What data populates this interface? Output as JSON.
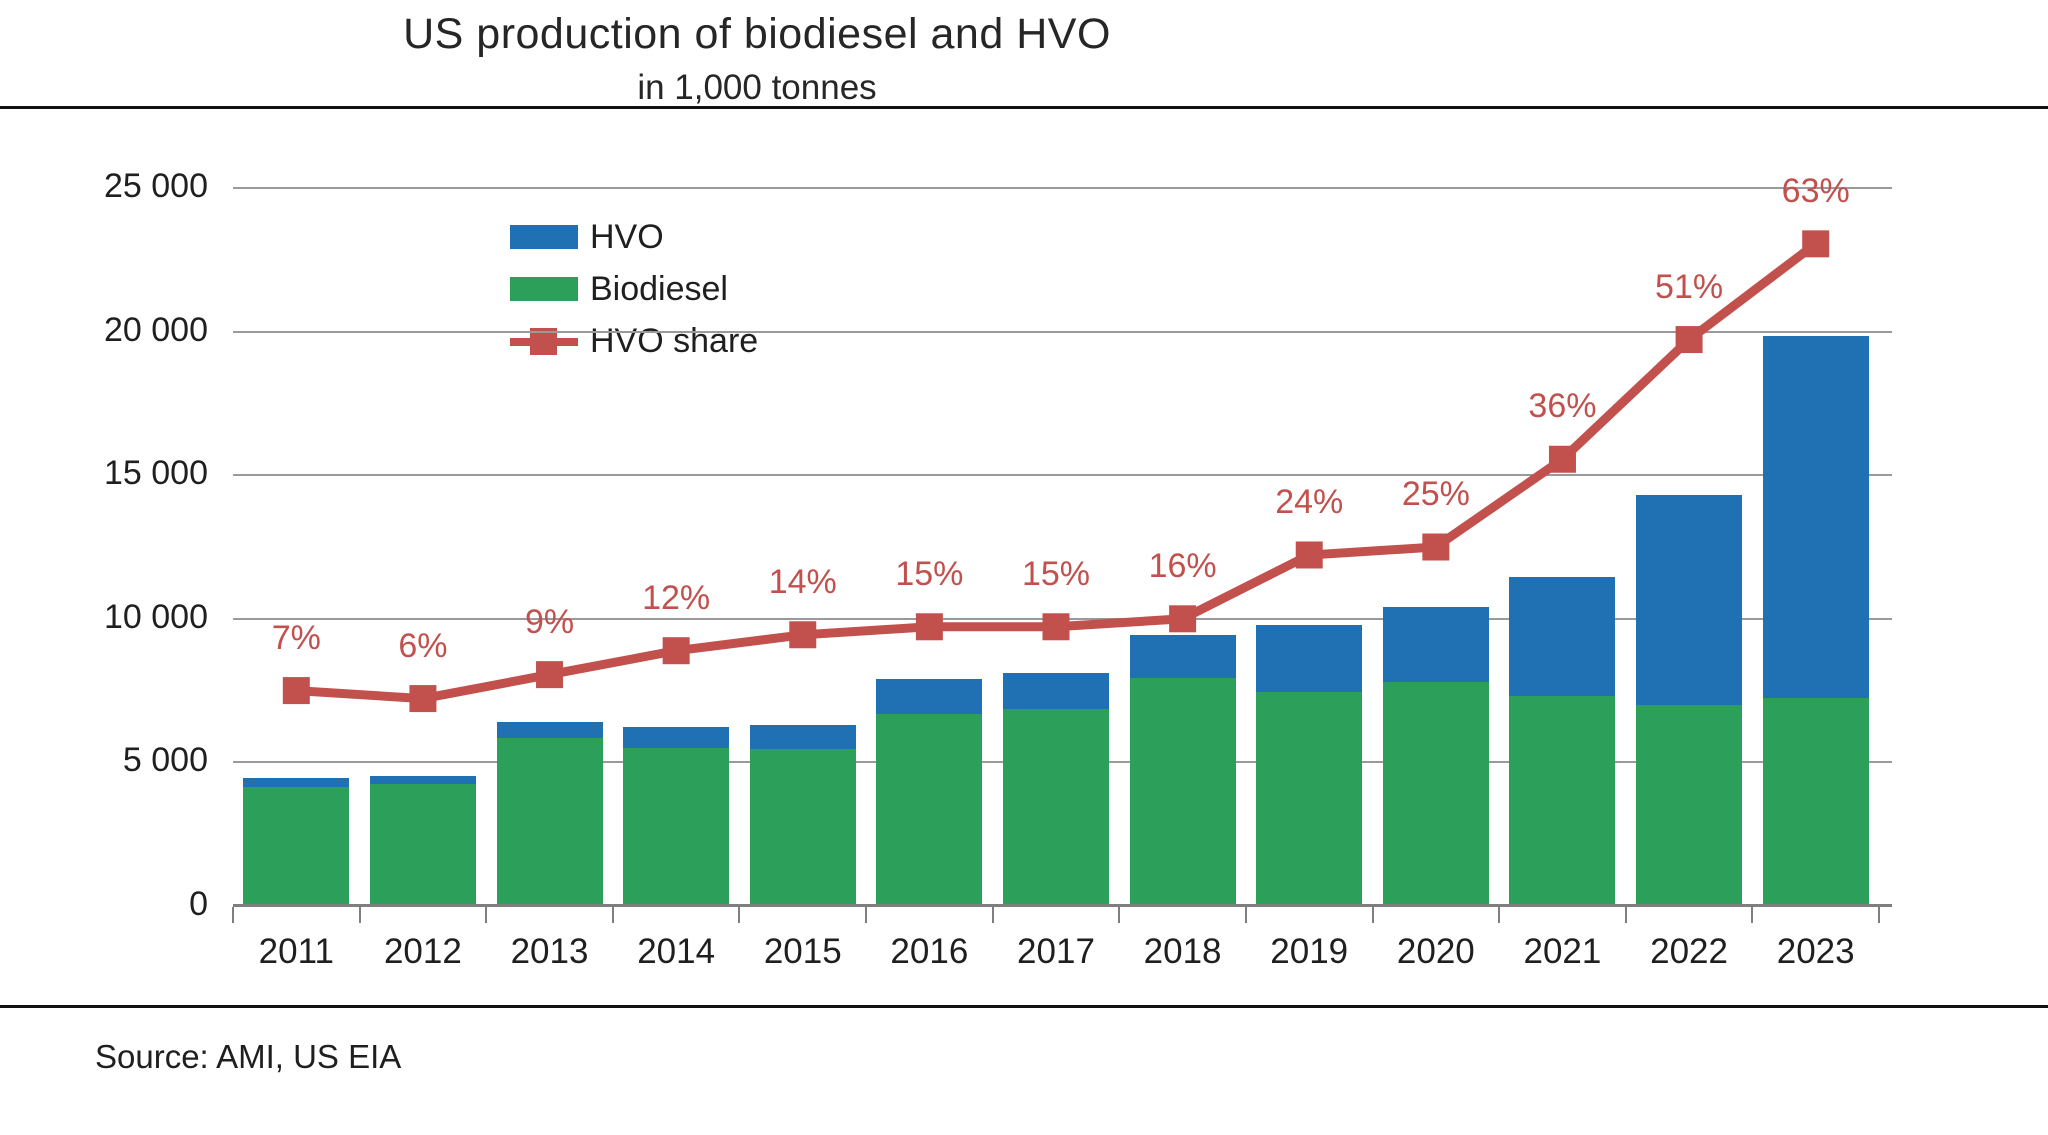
{
  "header": {
    "title": "US production of biodiesel and HVO",
    "subtitle": "in 1,000 tonnes"
  },
  "footer": {
    "source": "Source: AMI, US EIA"
  },
  "legend": {
    "items": [
      {
        "label": "HVO",
        "type": "bar",
        "color": "#2070b4"
      },
      {
        "label": "Biodiesel",
        "type": "bar",
        "color": "#2ca05a"
      },
      {
        "label": "HVO share",
        "type": "line-marker",
        "color": "#c2514e"
      }
    ]
  },
  "colors": {
    "hvo_blue": "#2070b4",
    "biodiesel_green": "#2ca05a",
    "share_red": "#c2514e",
    "gridline_gray": "#9a9a9a",
    "axis_gray": "#7f7f7f",
    "text_dark": "#1f1f1f",
    "divider_black": "#111111"
  },
  "chart_data": {
    "type": "bar",
    "subtype": "stacked-bars-with-line",
    "title": "US production of biodiesel and HVO",
    "subtitle": "in 1,000 tonnes",
    "xlabel": "",
    "ylabel": "",
    "unit": "1,000 tonnes",
    "categories": [
      2011,
      2012,
      2013,
      2014,
      2015,
      2016,
      2017,
      2018,
      2019,
      2020,
      2021,
      2022,
      2023
    ],
    "series": [
      {
        "name": "Biodiesel",
        "render": "bar",
        "stacked": true,
        "color": "#2ca05a",
        "values": [
          4150,
          4250,
          5850,
          5500,
          5450,
          6700,
          6850,
          7950,
          7450,
          7800,
          7300,
          7000,
          7250
        ]
      },
      {
        "name": "HVO",
        "render": "bar",
        "stacked": true,
        "color": "#2070b4",
        "values": [
          300,
          270,
          550,
          750,
          850,
          1200,
          1250,
          1500,
          2350,
          2600,
          4150,
          7300,
          12600
        ]
      },
      {
        "name": "HVO share",
        "render": "line",
        "color": "#c2514e",
        "unit": "%",
        "values": [
          7,
          6,
          9,
          12,
          14,
          15,
          15,
          16,
          24,
          25,
          36,
          51,
          63
        ],
        "point_labels": [
          "7%",
          "6%",
          "9%",
          "12%",
          "14%",
          "15%",
          "15%",
          "16%",
          "24%",
          "25%",
          "36%",
          "51%",
          "63%"
        ]
      }
    ],
    "y_axis": {
      "min": 0,
      "max": 25000,
      "tick_values": [
        25000,
        20000,
        15000,
        10000,
        5000,
        0
      ],
      "tick_labels": [
        "25 000",
        "20 000",
        "15 000",
        "10 000",
        "5 000",
        "0"
      ],
      "grid": true
    },
    "legend_position": "top-left-inside"
  }
}
